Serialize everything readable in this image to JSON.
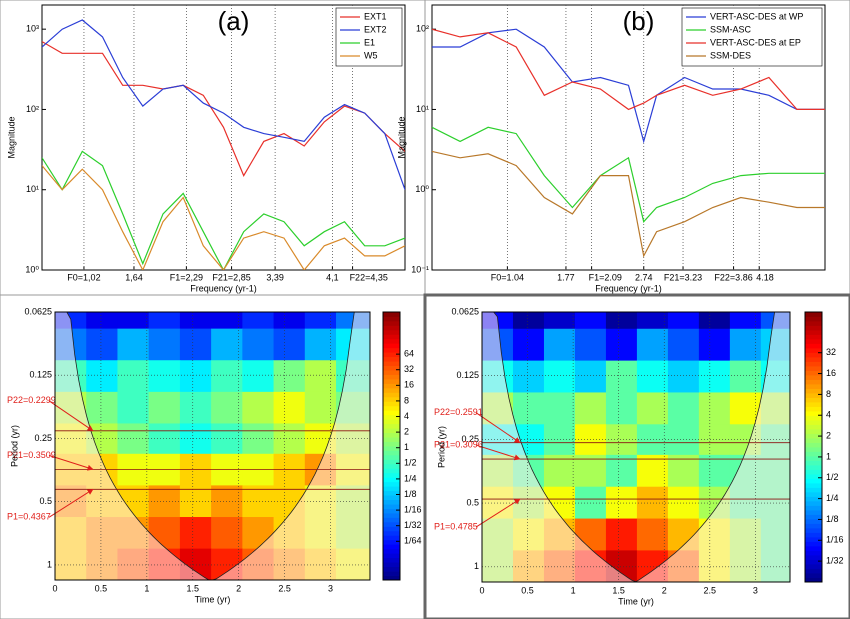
{
  "chart_data": [
    {
      "type": "line",
      "title": "(a)",
      "xlabel": "Frequency (yr-1)",
      "ylabel": "Magnitude",
      "ylog": true,
      "grid": "x",
      "legend": "upper right",
      "x": [
        0.5,
        0.75,
        1.0,
        1.25,
        1.5,
        1.75,
        2.0,
        2.25,
        2.5,
        2.75,
        3.0,
        3.25,
        3.5,
        3.75,
        4.0,
        4.25,
        4.5,
        4.75,
        5.0
      ],
      "xlim": [
        0.5,
        5.0
      ],
      "xticks": [
        {
          "value": 1.02,
          "label": "F0=1,02"
        },
        {
          "value": 1.64,
          "label": "1,64"
        },
        {
          "value": 2.29,
          "label": "F1=2,29"
        },
        {
          "value": 2.85,
          "label": "F21=2,85"
        },
        {
          "value": 3.39,
          "label": "3,39"
        },
        {
          "value": 4.1,
          "label": "4,1"
        },
        {
          "value": 4.35,
          "label": "F22=4,35"
        }
      ],
      "ylim": [
        1,
        2000
      ],
      "yticks": [
        {
          "value": 1,
          "label": "10⁰"
        },
        {
          "value": 10,
          "label": "10¹"
        },
        {
          "value": 100,
          "label": "10²"
        },
        {
          "value": 1000,
          "label": "10³"
        }
      ],
      "series": [
        {
          "name": "EXT1",
          "color": "#e8302a",
          "values": [
            700,
            500,
            500,
            500,
            200,
            200,
            180,
            200,
            150,
            60,
            15,
            40,
            50,
            35,
            70,
            110,
            90,
            50,
            30
          ]
        },
        {
          "name": "EXT2",
          "color": "#2b3ed6",
          "values": [
            600,
            1000,
            1300,
            800,
            250,
            110,
            180,
            200,
            120,
            90,
            60,
            50,
            45,
            40,
            80,
            115,
            90,
            50,
            10
          ]
        },
        {
          "name": "E1",
          "color": "#2ccf2c",
          "values": [
            25,
            10,
            30,
            20,
            5,
            1.2,
            5,
            9,
            3,
            1,
            3,
            5,
            4,
            2,
            3,
            4,
            2,
            2,
            2.5
          ]
        },
        {
          "name": "W5",
          "color": "#d98a2a",
          "values": [
            20,
            10,
            18,
            10,
            3,
            1,
            4,
            8,
            2,
            1,
            2.5,
            3,
            2.5,
            1,
            2,
            2.5,
            1.5,
            1.5,
            2
          ]
        }
      ]
    },
    {
      "type": "line",
      "title": "(b)",
      "xlabel": "Frequency (yr-1)",
      "ylabel": "Magnitude",
      "ylog": true,
      "grid": "x",
      "legend": "upper right",
      "x": [
        0.1,
        0.45,
        0.8,
        1.15,
        1.5,
        1.85,
        2.2,
        2.55,
        2.74,
        2.9,
        3.25,
        3.6,
        3.95,
        4.3,
        4.65,
        5.0
      ],
      "xlim": [
        0.1,
        5.0
      ],
      "xticks": [
        {
          "value": 1.04,
          "label": "F0=1.04"
        },
        1.77,
        {
          "value": 2.09,
          "label": "F1=2.09"
        },
        2.74,
        {
          "value": 3.23,
          "label": "F21=3.23"
        },
        {
          "value": 3.86,
          "label": "F22=3.86"
        },
        4.18
      ],
      "ylim": [
        0.1,
        200
      ],
      "yticks": [
        {
          "value": 0.1,
          "label": "10⁻¹"
        },
        {
          "value": 1,
          "label": "10⁰"
        },
        {
          "value": 10,
          "label": "10¹"
        },
        {
          "value": 100,
          "label": "10²"
        }
      ],
      "series": [
        {
          "name": "VERT-ASC-DES at WP",
          "color": "#2b3ed6",
          "values": [
            60,
            60,
            90,
            100,
            60,
            22,
            25,
            20,
            4,
            15,
            25,
            18,
            18,
            15,
            10,
            10
          ]
        },
        {
          "name": "SSM-ASC",
          "color": "#2ccf2c",
          "values": [
            6,
            4,
            6,
            5,
            1.5,
            0.6,
            1.5,
            2.5,
            0.4,
            0.6,
            0.8,
            1.2,
            1.5,
            1.6,
            1.6,
            1.6
          ]
        },
        {
          "name": "VERT-ASC-DES at EP",
          "color": "#e8302a",
          "values": [
            100,
            80,
            90,
            60,
            15,
            22,
            18,
            10,
            12,
            15,
            20,
            15,
            18,
            25,
            10,
            10
          ]
        },
        {
          "name": "SSM-DES",
          "color": "#b8782a",
          "values": [
            3,
            2.5,
            2.8,
            2,
            0.8,
            0.5,
            1.5,
            1.5,
            0.15,
            0.3,
            0.4,
            0.6,
            0.8,
            0.7,
            0.6,
            0.6
          ]
        }
      ]
    },
    {
      "type": "heatmap",
      "xlabel": "Time (yr)",
      "ylabel": "Period (yr)",
      "ylog": true,
      "yreverse": true,
      "x": [
        0.17,
        0.51,
        0.85,
        1.19,
        1.53,
        1.87,
        2.21,
        2.55,
        2.89,
        3.23
      ],
      "y": [
        0.0625,
        0.09,
        0.125,
        0.18,
        0.25,
        0.35,
        0.5,
        0.7,
        1.0
      ],
      "xlim": [
        0,
        3.43
      ],
      "xticks": [
        0,
        0.5,
        1,
        1.5,
        2,
        2.5,
        3
      ],
      "ylim": [
        0.0625,
        1.18
      ],
      "yticks": [
        0.0625,
        0.125,
        0.25,
        0.5,
        1
      ],
      "z": [
        [
          0.02,
          0.01,
          0.01,
          0.02,
          0.01,
          0.01,
          0.02,
          0.01,
          0.02,
          0.05
        ],
        [
          0.05,
          0.03,
          0.1,
          0.05,
          0.03,
          0.1,
          0.05,
          0.03,
          0.1,
          0.2
        ],
        [
          0.5,
          0.2,
          0.5,
          0.3,
          0.2,
          0.5,
          0.3,
          1,
          2,
          0.5
        ],
        [
          2,
          1,
          0.5,
          1,
          0.5,
          1,
          2,
          4,
          2,
          1
        ],
        [
          4,
          2,
          1,
          0.5,
          0.3,
          0.5,
          1,
          2,
          4,
          2
        ],
        [
          8,
          8,
          4,
          4,
          8,
          4,
          4,
          8,
          16,
          4
        ],
        [
          16,
          8,
          8,
          16,
          8,
          16,
          8,
          8,
          4,
          2
        ],
        [
          8,
          16,
          16,
          32,
          64,
          32,
          16,
          8,
          4,
          2
        ],
        [
          8,
          16,
          32,
          64,
          128,
          64,
          32,
          16,
          8,
          4
        ]
      ],
      "clim": [
        0.0028,
        416
      ],
      "cticks": [
        64,
        32,
        16,
        8,
        4,
        2,
        1,
        {
          "value": 0.5,
          "label": "1/2"
        },
        {
          "value": 0.25,
          "label": "1/4"
        },
        {
          "value": 0.125,
          "label": "1/8"
        },
        {
          "value": 0.0625,
          "label": "1/16"
        },
        {
          "value": 0.03125,
          "label": "1/32"
        },
        {
          "value": 0.015625,
          "label": "1/64"
        }
      ],
      "annotations": [
        {
          "value": 0.2299,
          "label": "P22=0.2299"
        },
        {
          "value": 0.3509,
          "label": "P21=0.3509"
        },
        {
          "value": 0.4367,
          "label": "P1=0.4367"
        }
      ]
    },
    {
      "type": "heatmap",
      "xlabel": "Time (yr)",
      "ylabel": "Period (yr)",
      "ylog": true,
      "yreverse": true,
      "x": [
        0.17,
        0.51,
        0.85,
        1.19,
        1.53,
        1.87,
        2.21,
        2.55,
        2.89,
        3.23
      ],
      "y": [
        0.0625,
        0.09,
        0.125,
        0.18,
        0.25,
        0.35,
        0.5,
        0.7,
        1.0
      ],
      "xlim": [
        0,
        3.38
      ],
      "xticks": [
        0,
        0.5,
        1,
        1.5,
        2,
        2.5,
        3
      ],
      "ylim": [
        0.0625,
        1.18
      ],
      "yticks": [
        0.0625,
        0.125,
        0.25,
        0.5,
        1
      ],
      "z": [
        [
          0.05,
          0.02,
          0.03,
          0.05,
          0.02,
          0.03,
          0.05,
          0.02,
          0.05,
          0.1
        ],
        [
          0.1,
          0.05,
          0.2,
          0.1,
          0.05,
          0.2,
          0.1,
          0.05,
          0.2,
          0.3
        ],
        [
          0.5,
          0.3,
          0.5,
          0.3,
          1,
          0.5,
          0.3,
          0.5,
          1,
          0.5
        ],
        [
          2,
          1,
          1,
          2,
          1,
          2,
          1,
          2,
          4,
          2
        ],
        [
          0.5,
          0.5,
          1,
          4,
          2,
          1,
          1,
          2,
          2,
          1
        ],
        [
          2,
          1,
          2,
          2,
          1,
          4,
          2,
          1,
          1,
          1
        ],
        [
          4,
          2,
          4,
          1,
          4,
          8,
          4,
          2,
          1,
          1
        ],
        [
          2,
          4,
          8,
          16,
          32,
          16,
          8,
          4,
          2,
          1
        ],
        [
          2,
          8,
          16,
          32,
          64,
          32,
          16,
          4,
          2,
          1
        ]
      ],
      "clim": [
        0.0156,
        124
      ],
      "cticks": [
        32,
        16,
        8,
        4,
        2,
        1,
        {
          "value": 0.5,
          "label": "1/2"
        },
        {
          "value": 0.25,
          "label": "1/4"
        },
        {
          "value": 0.125,
          "label": "1/8"
        },
        {
          "value": 0.0625,
          "label": "1/16"
        },
        {
          "value": 0.03125,
          "label": "1/32"
        }
      ],
      "annotations": [
        {
          "value": 0.2591,
          "label": "P22=0.2591"
        },
        {
          "value": 0.3096,
          "label": "P21=0.3096"
        },
        {
          "value": 0.4785,
          "label": "P1=0.4785"
        }
      ]
    }
  ]
}
